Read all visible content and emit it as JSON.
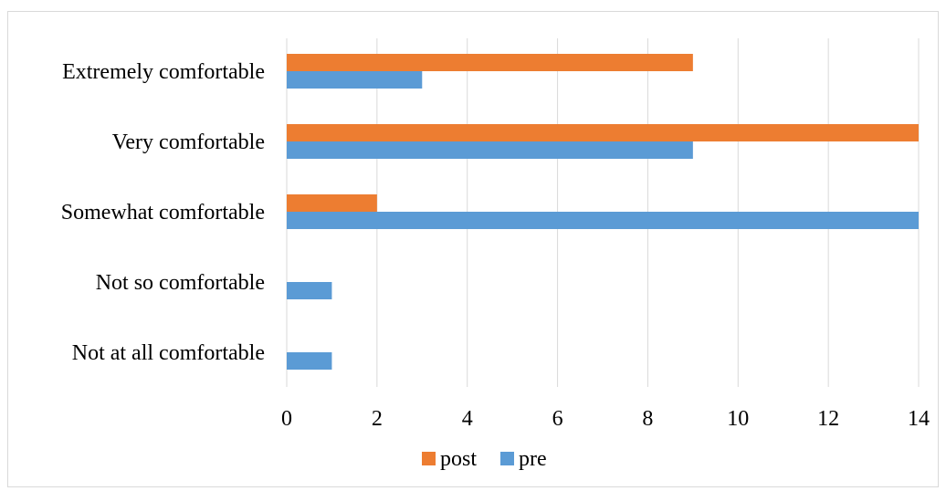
{
  "chart_data": {
    "type": "bar",
    "orientation": "horizontal",
    "categories": [
      "Extremely comfortable",
      "Very comfortable",
      "Somewhat comfortable",
      "Not so comfortable",
      "Not at all comfortable"
    ],
    "series": [
      {
        "name": "post",
        "color": "#ed7d31",
        "values": [
          9,
          14,
          2,
          0,
          0
        ]
      },
      {
        "name": "pre",
        "color": "#5b9bd5",
        "values": [
          3,
          9,
          14,
          1,
          1
        ]
      }
    ],
    "xticks": [
      "0",
      "2",
      "4",
      "6",
      "8",
      "10",
      "12",
      "14"
    ],
    "xlim": [
      0,
      14
    ],
    "grid": "vertical",
    "legend_position": "bottom"
  }
}
